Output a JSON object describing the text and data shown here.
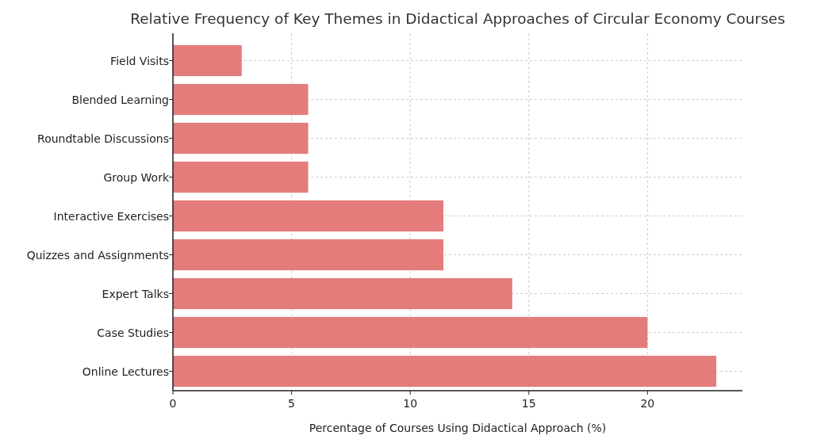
{
  "chart_data": {
    "type": "bar",
    "orientation": "horizontal",
    "title": "Relative Frequency of Key Themes in Didactical Approaches of Circular Economy Courses",
    "xlabel": "Percentage of Courses Using Didactical Approach (%)",
    "categories": [
      "Field Visits",
      "Blended Learning",
      "Roundtable Discussions",
      "Group Work",
      "Interactive Exercises",
      "Quizzes and Assignments",
      "Expert Talks",
      "Case Studies",
      "Online Lectures"
    ],
    "values": [
      2.9,
      5.7,
      5.7,
      5.7,
      11.4,
      11.4,
      14.3,
      20,
      22.9
    ],
    "color": "#e47c7c",
    "xlim": [
      0,
      24
    ],
    "xticks": [
      0,
      5,
      10,
      15,
      20
    ],
    "grid": true
  }
}
